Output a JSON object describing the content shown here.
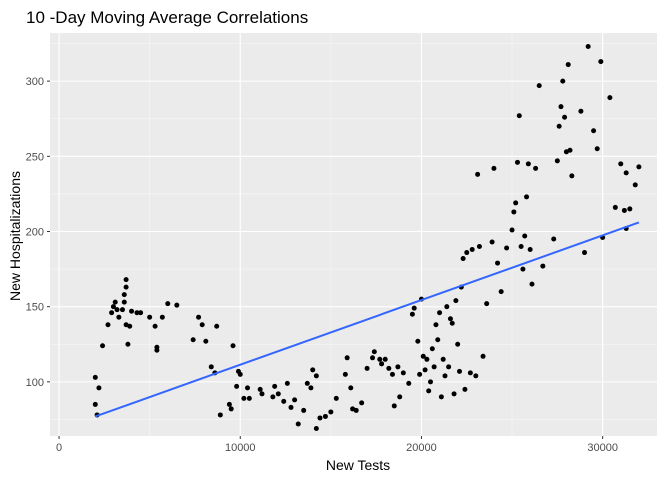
{
  "chart_data": {
    "type": "scatter",
    "title": "10 -Day Moving Average Correlations",
    "xlabel": "New Tests",
    "ylabel": "New Hospitalizations",
    "xlim": [
      -500,
      33000
    ],
    "ylim": [
      64,
      332
    ],
    "x_ticks": [
      0,
      10000,
      20000,
      30000
    ],
    "x_tick_labels": [
      "0",
      "10000",
      "20000",
      "30000"
    ],
    "y_ticks": [
      100,
      150,
      200,
      250,
      300
    ],
    "y_tick_labels": [
      "100",
      "150",
      "200",
      "250",
      "300"
    ],
    "grid": true,
    "legend": "none",
    "colors": {
      "panel": "#ebebeb",
      "grid_major": "#ffffff",
      "points": "#000000",
      "trend": "#3366ff"
    },
    "trend_line": {
      "x": [
        2000,
        32000
      ],
      "y": [
        77,
        206
      ]
    },
    "points": [
      [
        2000,
        85
      ],
      [
        2000,
        103
      ],
      [
        2100,
        78
      ],
      [
        2200,
        96
      ],
      [
        2400,
        124
      ],
      [
        2700,
        138
      ],
      [
        2900,
        146
      ],
      [
        3000,
        150
      ],
      [
        3100,
        153
      ],
      [
        3200,
        148
      ],
      [
        3300,
        143
      ],
      [
        3500,
        148
      ],
      [
        3600,
        153
      ],
      [
        3600,
        158
      ],
      [
        3700,
        163
      ],
      [
        3700,
        168
      ],
      [
        3700,
        138
      ],
      [
        3800,
        125
      ],
      [
        3900,
        137
      ],
      [
        4000,
        147
      ],
      [
        4300,
        146
      ],
      [
        4500,
        146
      ],
      [
        5000,
        143
      ],
      [
        5300,
        137
      ],
      [
        5400,
        123
      ],
      [
        5400,
        121
      ],
      [
        5700,
        143
      ],
      [
        6000,
        152
      ],
      [
        6500,
        151
      ],
      [
        7400,
        128
      ],
      [
        7700,
        143
      ],
      [
        7900,
        138
      ],
      [
        8100,
        127
      ],
      [
        8400,
        110
      ],
      [
        8600,
        106
      ],
      [
        8700,
        137
      ],
      [
        8900,
        78
      ],
      [
        9400,
        85
      ],
      [
        9500,
        82
      ],
      [
        9600,
        124
      ],
      [
        9800,
        97
      ],
      [
        9900,
        107
      ],
      [
        10000,
        105
      ],
      [
        10200,
        89
      ],
      [
        10400,
        96
      ],
      [
        10500,
        89
      ],
      [
        11100,
        95
      ],
      [
        11200,
        92
      ],
      [
        11800,
        90
      ],
      [
        11900,
        97
      ],
      [
        12100,
        92
      ],
      [
        12400,
        87
      ],
      [
        12600,
        99
      ],
      [
        12800,
        83
      ],
      [
        13000,
        88
      ],
      [
        13200,
        72
      ],
      [
        13500,
        81
      ],
      [
        13700,
        99
      ],
      [
        13900,
        96
      ],
      [
        14000,
        108
      ],
      [
        14200,
        69
      ],
      [
        14200,
        104
      ],
      [
        14400,
        76
      ],
      [
        14700,
        77
      ],
      [
        15000,
        80
      ],
      [
        15300,
        89
      ],
      [
        15800,
        105
      ],
      [
        15900,
        116
      ],
      [
        16100,
        96
      ],
      [
        16200,
        82
      ],
      [
        16400,
        81
      ],
      [
        16700,
        86
      ],
      [
        17000,
        109
      ],
      [
        17300,
        116
      ],
      [
        17400,
        120
      ],
      [
        17700,
        115
      ],
      [
        17800,
        112
      ],
      [
        18000,
        115
      ],
      [
        18200,
        109
      ],
      [
        18400,
        105
      ],
      [
        18500,
        84
      ],
      [
        18700,
        110
      ],
      [
        18800,
        90
      ],
      [
        19000,
        106
      ],
      [
        19300,
        99
      ],
      [
        19500,
        145
      ],
      [
        19600,
        149
      ],
      [
        19800,
        127
      ],
      [
        19900,
        105
      ],
      [
        20000,
        155
      ],
      [
        20100,
        117
      ],
      [
        20200,
        108
      ],
      [
        20300,
        115
      ],
      [
        20400,
        94
      ],
      [
        20500,
        100
      ],
      [
        20600,
        122
      ],
      [
        20700,
        110
      ],
      [
        20800,
        138
      ],
      [
        20900,
        128
      ],
      [
        21000,
        146
      ],
      [
        21100,
        90
      ],
      [
        21200,
        115
      ],
      [
        21300,
        104
      ],
      [
        21400,
        150
      ],
      [
        21500,
        110
      ],
      [
        21600,
        142
      ],
      [
        21700,
        139
      ],
      [
        21800,
        92
      ],
      [
        21900,
        154
      ],
      [
        22000,
        125
      ],
      [
        22100,
        107
      ],
      [
        22200,
        163
      ],
      [
        22300,
        182
      ],
      [
        22400,
        95
      ],
      [
        22500,
        186
      ],
      [
        22700,
        106
      ],
      [
        22800,
        188
      ],
      [
        23000,
        104
      ],
      [
        23100,
        238
      ],
      [
        23200,
        190
      ],
      [
        23400,
        117
      ],
      [
        23600,
        152
      ],
      [
        23900,
        193
      ],
      [
        24000,
        242
      ],
      [
        24200,
        179
      ],
      [
        24400,
        160
      ],
      [
        24700,
        189
      ],
      [
        25000,
        201
      ],
      [
        25100,
        213
      ],
      [
        25200,
        219
      ],
      [
        25300,
        246
      ],
      [
        25400,
        277
      ],
      [
        25500,
        190
      ],
      [
        25600,
        175
      ],
      [
        25700,
        197
      ],
      [
        25800,
        223
      ],
      [
        25900,
        245
      ],
      [
        26000,
        188
      ],
      [
        26100,
        165
      ],
      [
        26300,
        242
      ],
      [
        26500,
        297
      ],
      [
        26700,
        177
      ],
      [
        27300,
        195
      ],
      [
        27500,
        247
      ],
      [
        27600,
        270
      ],
      [
        27700,
        283
      ],
      [
        27800,
        300
      ],
      [
        27900,
        276
      ],
      [
        28000,
        253
      ],
      [
        28100,
        311
      ],
      [
        28200,
        254
      ],
      [
        28300,
        237
      ],
      [
        28800,
        280
      ],
      [
        29000,
        186
      ],
      [
        29200,
        323
      ],
      [
        29500,
        267
      ],
      [
        29700,
        255
      ],
      [
        29900,
        313
      ],
      [
        30000,
        196
      ],
      [
        30400,
        289
      ],
      [
        30700,
        216
      ],
      [
        31000,
        245
      ],
      [
        31200,
        214
      ],
      [
        31300,
        239
      ],
      [
        31300,
        202
      ],
      [
        31500,
        215
      ],
      [
        31800,
        231
      ],
      [
        32000,
        243
      ]
    ]
  }
}
